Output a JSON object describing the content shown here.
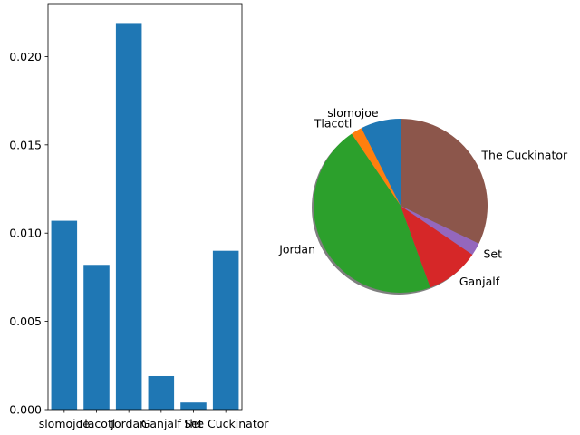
{
  "chart_data": [
    {
      "type": "bar",
      "categories": [
        "slomojoe",
        "Tlacotl",
        "Jordan",
        "Ganjalf",
        "Set",
        "The Cuckinator"
      ],
      "values": [
        0.0107,
        0.0082,
        0.0219,
        0.0019,
        0.0004,
        0.009
      ],
      "ylim": [
        0,
        0.023
      ],
      "yticks": [
        "0.000",
        "0.005",
        "0.010",
        "0.015",
        "0.020"
      ],
      "ytick_values": [
        0,
        0.005,
        0.01,
        0.015,
        0.02
      ],
      "grid": false,
      "color": "#1f77b4"
    },
    {
      "type": "pie",
      "labels": [
        "slomojoe",
        "Tlacotl",
        "Jordan",
        "Ganjalf",
        "Set",
        "The Cuckinator"
      ],
      "values": [
        0.0107,
        0.0082,
        0.0219,
        0.0019,
        0.0004,
        0.009
      ],
      "slice_values": [
        0.0107,
        0.003,
        0.0663,
        0.0143,
        0.0034,
        0.0463
      ],
      "colors": [
        "#1f77b4",
        "#ff7f0e",
        "#2ca02c",
        "#d62728",
        "#9467bd",
        "#8c564b"
      ],
      "start_angle_deg": 90,
      "shadow": true
    }
  ]
}
